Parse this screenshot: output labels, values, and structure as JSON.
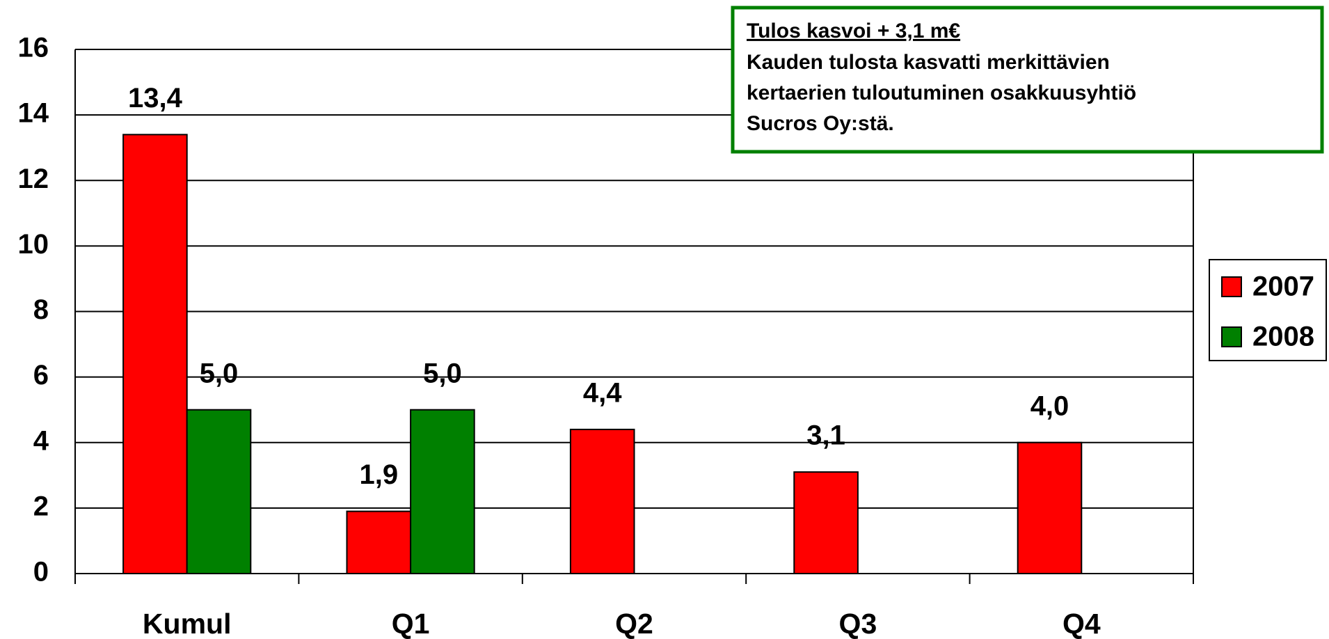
{
  "chart_data": {
    "type": "bar",
    "categories": [
      "Kumul",
      "Q1",
      "Q2",
      "Q3",
      "Q4"
    ],
    "series": [
      {
        "name": "2007",
        "color": "#ff0000",
        "values": [
          13.4,
          1.9,
          4.4,
          3.1,
          4.0
        ],
        "value_labels": [
          "13,4",
          "1,9",
          "4,4",
          "3,1",
          "4,0"
        ]
      },
      {
        "name": "2008",
        "color": "#008000",
        "values": [
          5.0,
          5.0,
          null,
          null,
          null
        ],
        "value_labels": [
          "5,0",
          "5,0",
          null,
          null,
          null
        ]
      }
    ],
    "ylim": [
      0,
      16
    ],
    "yticks": [
      0,
      2,
      4,
      6,
      8,
      10,
      12,
      14,
      16
    ],
    "grid": true,
    "legend": "right",
    "annotation": {
      "title": "Tulos kasvoi + 3,1 m€",
      "lines": [
        "Kauden tulosta kasvatti merkittävien",
        "kertaerien tuloutuminen  osakkuusyhtiö",
        "Sucros Oy:stä."
      ],
      "color": "#008000"
    }
  }
}
